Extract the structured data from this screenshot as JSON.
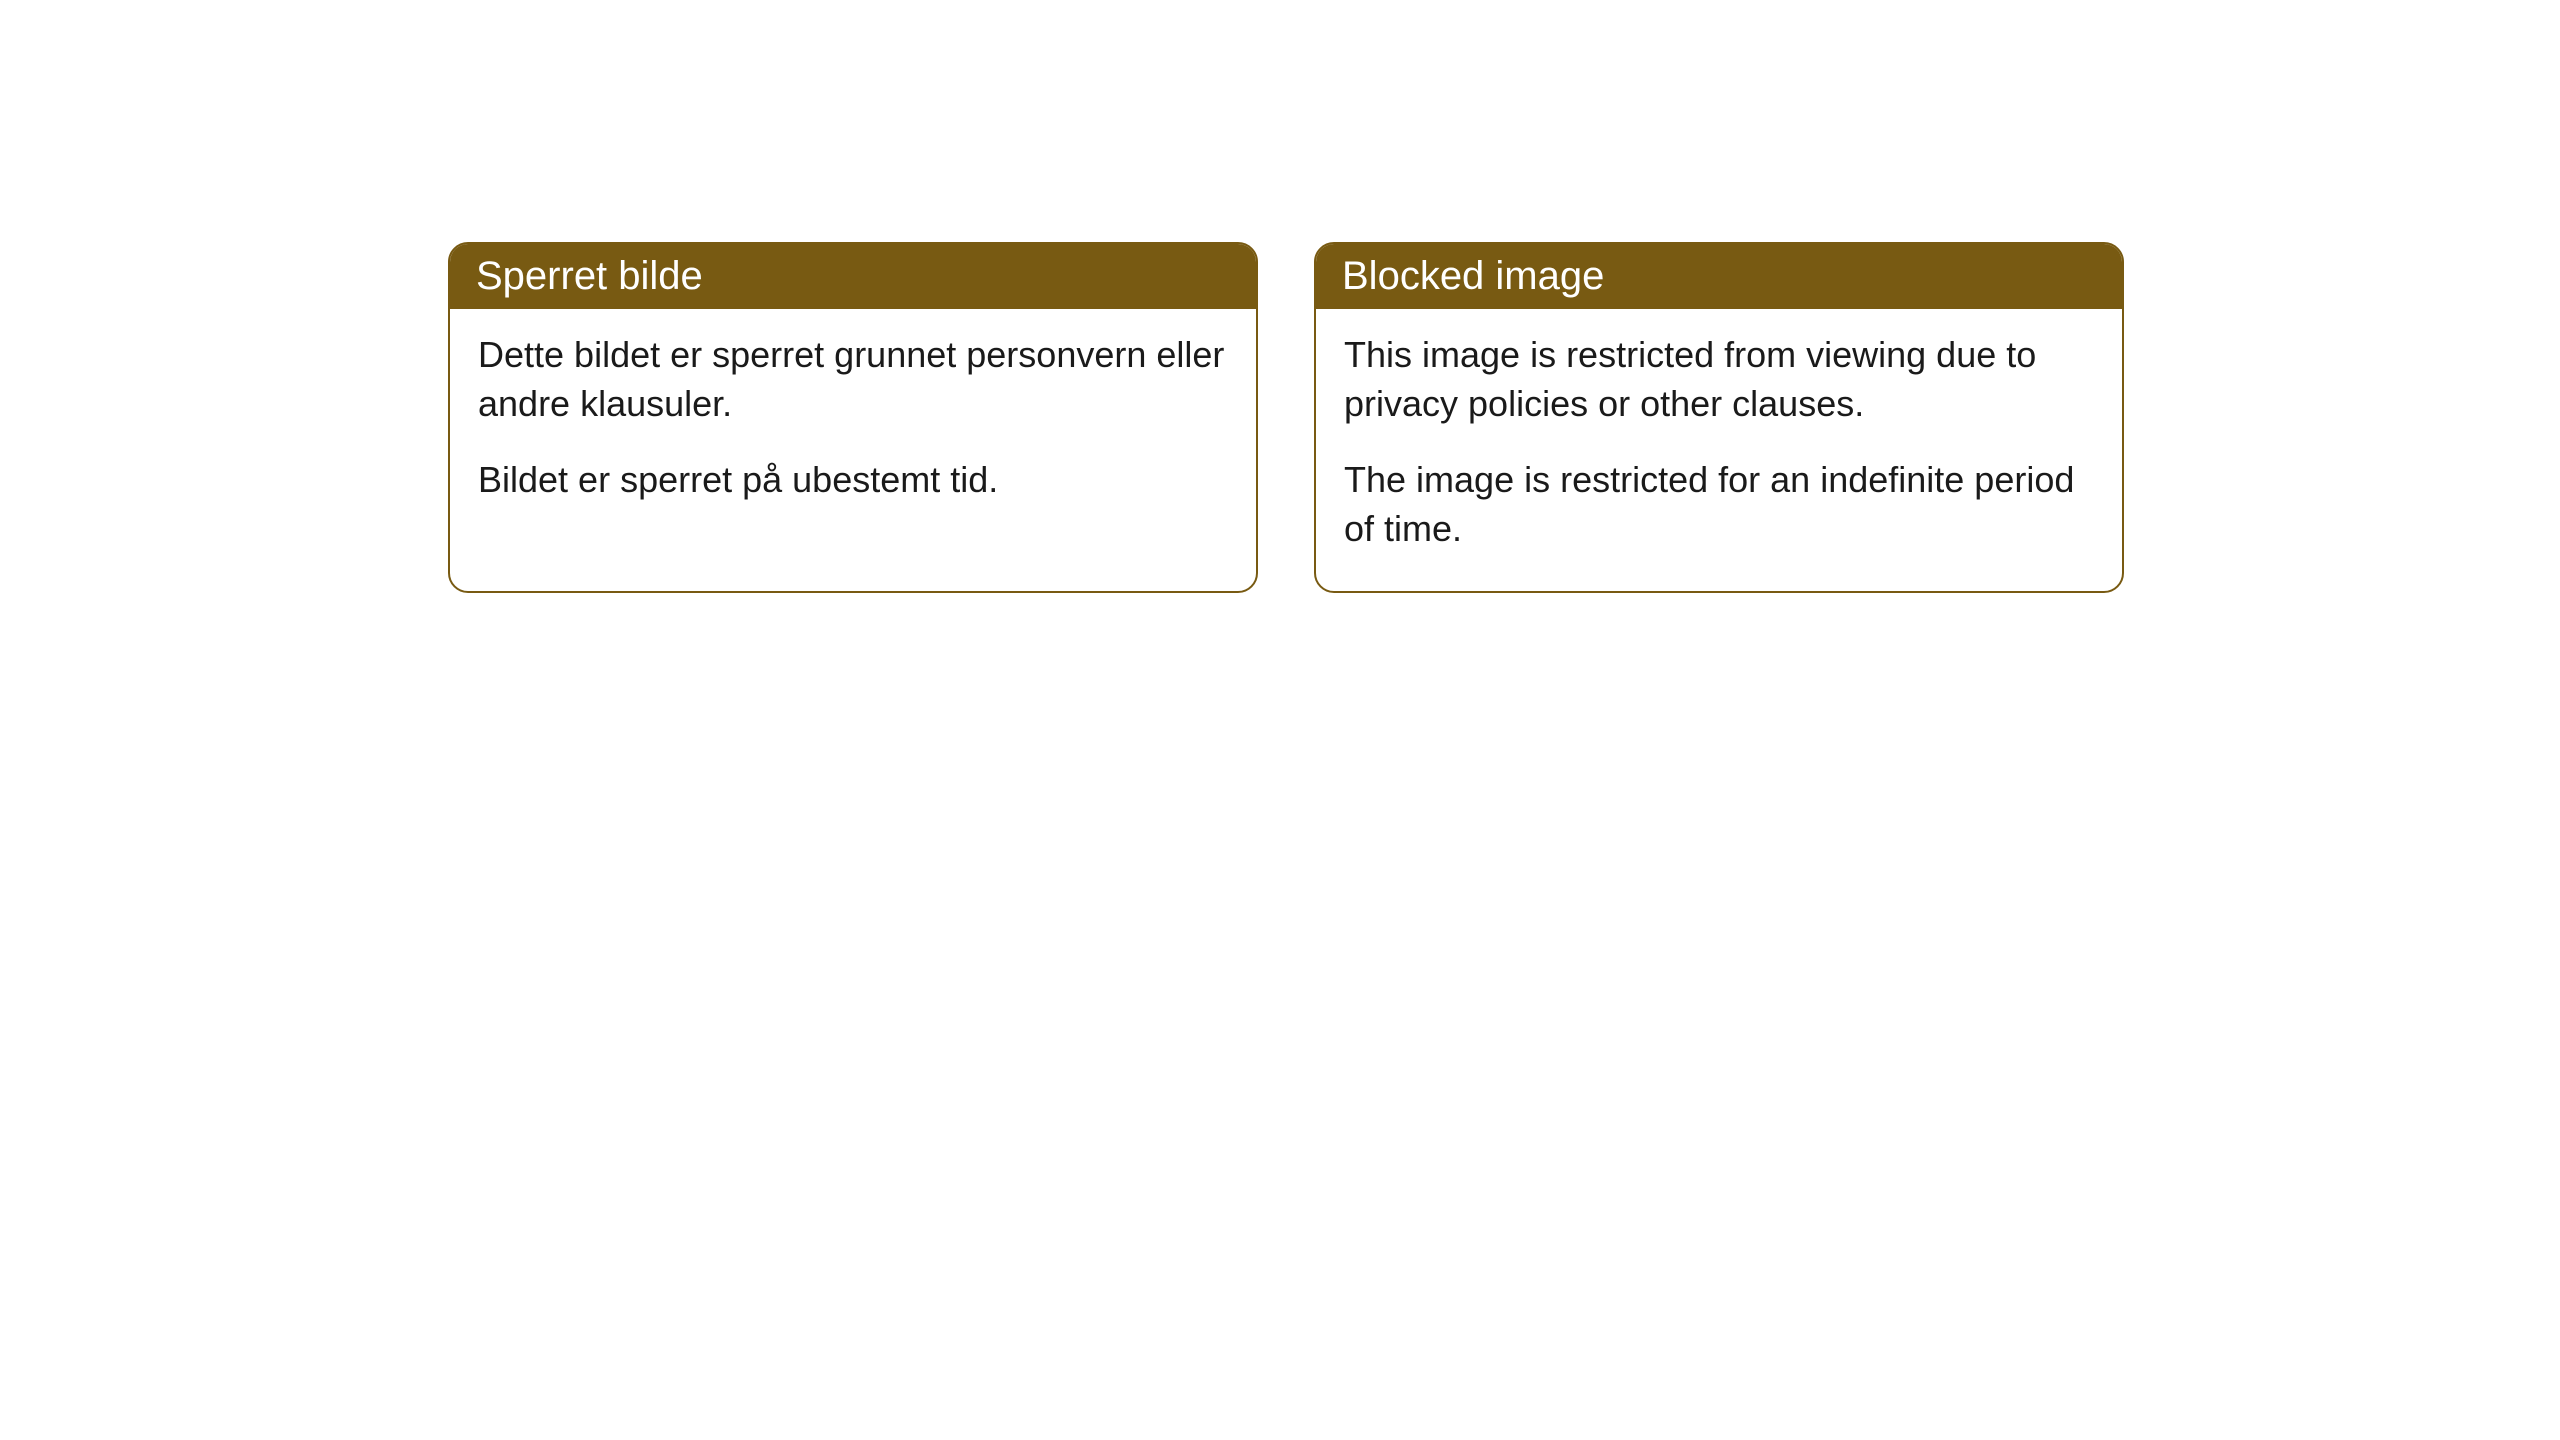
{
  "cards": [
    {
      "title": "Sperret bilde",
      "paragraph1": "Dette bildet er sperret grunnet personvern eller andre klausuler.",
      "paragraph2": "Bildet er sperret på ubestemt tid."
    },
    {
      "title": "Blocked image",
      "paragraph1": "This image is restricted from viewing due to privacy policies or other clauses.",
      "paragraph2": "The image is restricted for an indefinite period of time."
    }
  ],
  "styling": {
    "header_background": "#785a12",
    "header_text_color": "#ffffff",
    "border_color": "#785a12",
    "body_text_color": "#1a1a1a",
    "page_background": "#ffffff",
    "border_radius": 20,
    "title_fontsize": 40,
    "body_fontsize": 36
  }
}
